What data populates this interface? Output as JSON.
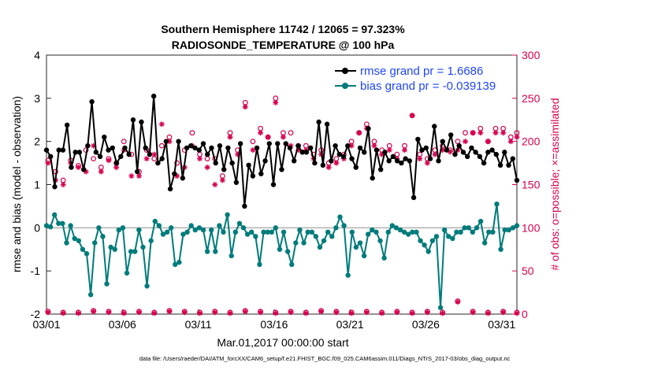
{
  "chart_data": {
    "type": "line",
    "title": "Southern Hemisphere 11742 / 12065 = 97.323%",
    "subtitle": "RADIOSONDE_TEMPERATURE @ 100 hPa",
    "xlabel": "Mar.01,2017 00:00:00 start",
    "ylabel": "rmse and bias (model - observation)",
    "ylabel_right": "# of obs: o=possible; ×=assimilated",
    "xlim": [
      0,
      31
    ],
    "ylim": [
      -2,
      4
    ],
    "ylim_right": [
      0,
      300
    ],
    "x_ticks": [
      0,
      5,
      10,
      15,
      20,
      25,
      30
    ],
    "x_tick_labels": [
      "03/01",
      "03/06",
      "03/11",
      "03/16",
      "03/21",
      "03/26",
      "03/31"
    ],
    "y_ticks": [
      "-2",
      "-1",
      "0",
      "1",
      "2",
      "3",
      "4"
    ],
    "y_ticks_right": [
      "0",
      "50",
      "100",
      "150",
      "200",
      "250",
      "300"
    ],
    "footnote": "data file: /Users/raeder/DAI/ATM_forcXX/CAM6_setup/f.e21.FHIST_BGC.f09_025.CAM6assim.011/Diags_NTrS_2017-03/obs_diag_output.nc",
    "colors": {
      "rmse": "#000000",
      "bias": "#007b7b",
      "obs": "#d6004f",
      "legend_text": "#1f45ff",
      "zero_line": "#b0b0b0"
    },
    "series": [
      {
        "name": "rmse grand pr = 1.6686",
        "values": [
          1.8,
          1.65,
          0.95,
          1.8,
          1.8,
          2.38,
          1.4,
          1.75,
          1.75,
          1.35,
          1.9,
          2.92,
          1.75,
          1.65,
          2.1,
          1.8,
          1.85,
          1.5,
          1.65,
          1.85,
          1.7,
          2.5,
          1.3,
          2.45,
          1.85,
          1.7,
          3.05,
          1.5,
          1.6,
          2.0,
          0.9,
          1.25,
          2.0,
          1.15,
          1.85,
          1.9,
          1.85,
          1.8,
          1.95,
          1.7,
          1.85,
          1.5,
          1.9,
          1.35,
          1.85,
          1.5,
          1.05,
          1.95,
          0.5,
          1.45,
          1.2,
          1.85,
          1.25,
          1.55,
          1.95,
          1.0,
          1.95,
          1.35,
          1.95,
          1.85,
          1.55,
          1.9,
          1.75,
          1.75,
          1.85,
          1.5,
          2.45,
          1.45,
          2.4,
          1.55,
          1.9,
          1.7,
          1.65,
          1.9,
          1.6,
          1.4,
          1.85,
          1.75,
          2.3,
          1.15,
          1.8,
          1.35,
          1.75,
          1.55,
          1.65,
          1.55,
          1.5,
          1.6,
          1.55,
          0.7,
          2.05,
          1.8,
          1.85,
          1.6,
          2.35,
          1.55,
          2.0,
          1.8,
          2.15,
          1.7,
          1.9,
          1.75,
          1.65,
          1.85,
          1.75,
          1.65,
          1.5,
          1.75,
          1.8,
          1.7,
          1.45,
          1.75,
          1.45,
          1.6,
          1.1
        ]
      },
      {
        "name": "bias grand pr = -0.039139",
        "values": [
          0.05,
          0.02,
          0.3,
          0.1,
          0.1,
          -0.35,
          0.05,
          -0.25,
          -0.3,
          -0.5,
          -0.6,
          -1.55,
          -0.35,
          0.0,
          -0.2,
          -1.3,
          -0.45,
          -0.5,
          -0.05,
          0.0,
          -1.05,
          -0.55,
          -0.55,
          -0.05,
          -0.45,
          -1.35,
          -0.3,
          0.15,
          0.05,
          -0.15,
          -0.1,
          0.0,
          -0.85,
          -0.8,
          -0.15,
          -0.1,
          0.05,
          -0.05,
          0.0,
          -0.05,
          -0.55,
          -0.05,
          -0.55,
          0.05,
          -0.1,
          0.3,
          -0.65,
          -0.1,
          0.1,
          0.0,
          -0.15,
          -0.1,
          -0.2,
          -0.85,
          -0.1,
          -0.1,
          -0.1,
          0.0,
          -0.5,
          -0.1,
          -0.55,
          -0.85,
          -0.35,
          -0.05,
          -0.35,
          -0.1,
          -0.1,
          -0.2,
          -0.45,
          -0.3,
          -0.1,
          -0.2,
          0.0,
          0.25,
          0.05,
          -1.1,
          -0.1,
          -0.45,
          -0.35,
          -0.65,
          -0.15,
          -0.05,
          -0.1,
          -0.3,
          -0.7,
          -0.1,
          0.05,
          0.0,
          -0.05,
          -0.1,
          -0.15,
          -0.1,
          -0.1,
          -0.3,
          -0.4,
          -0.55,
          -0.3,
          -0.2,
          -1.85,
          -0.05,
          -0.2,
          -0.25,
          -0.1,
          -0.1,
          0.0,
          0.0,
          -0.1,
          0.0,
          0.15,
          -0.35,
          -0.1,
          -0.1,
          0.55,
          -0.5,
          -0.05,
          -0.05,
          0.0,
          0.05
        ]
      }
    ],
    "obs_possible": [
      [
        0.1,
        178
      ],
      [
        0.6,
        165
      ],
      [
        1.1,
        155
      ],
      [
        1.6,
        178
      ],
      [
        2.1,
        172
      ],
      [
        2.6,
        190
      ],
      [
        3.1,
        180
      ],
      [
        3.6,
        170
      ],
      [
        4.1,
        180
      ],
      [
        4.6,
        175
      ],
      [
        5.1,
        200
      ],
      [
        5.6,
        185
      ],
      [
        6.1,
        165
      ],
      [
        6.6,
        190
      ],
      [
        7.1,
        180
      ],
      [
        7.6,
        195
      ],
      [
        8.1,
        205
      ],
      [
        8.6,
        175
      ],
      [
        9.1,
        190
      ],
      [
        9.6,
        210
      ],
      [
        10.1,
        185
      ],
      [
        10.6,
        180
      ],
      [
        11.1,
        180
      ],
      [
        11.6,
        160
      ],
      [
        12.1,
        210
      ],
      [
        12.6,
        190
      ],
      [
        13.1,
        245
      ],
      [
        13.6,
        200
      ],
      [
        14.1,
        215
      ],
      [
        14.6,
        205
      ],
      [
        15.1,
        250
      ],
      [
        15.6,
        210
      ],
      [
        16.1,
        210
      ],
      [
        16.6,
        195
      ],
      [
        17.1,
        195
      ],
      [
        17.6,
        185
      ],
      [
        18.1,
        190
      ],
      [
        18.6,
        175
      ],
      [
        19.1,
        180
      ],
      [
        19.6,
        185
      ],
      [
        20.1,
        200
      ],
      [
        20.6,
        210
      ],
      [
        21.1,
        220
      ],
      [
        21.6,
        200
      ],
      [
        22.1,
        190
      ],
      [
        22.6,
        195
      ],
      [
        23.1,
        185
      ],
      [
        23.6,
        195
      ],
      [
        24.1,
        230
      ],
      [
        24.6,
        185
      ],
      [
        25.1,
        180
      ],
      [
        25.6,
        190
      ],
      [
        26.1,
        195
      ],
      [
        26.6,
        190
      ],
      [
        27.1,
        200
      ],
      [
        27.6,
        210
      ],
      [
        28.1,
        210
      ],
      [
        28.6,
        215
      ],
      [
        29.1,
        200
      ],
      [
        29.6,
        215
      ],
      [
        30.1,
        215
      ],
      [
        30.6,
        205
      ],
      [
        31.0,
        210
      ]
    ],
    "obs_assimilated": [
      [
        0.1,
        175
      ],
      [
        0.6,
        155
      ],
      [
        1.1,
        150
      ],
      [
        1.6,
        175
      ],
      [
        2.1,
        170
      ],
      [
        2.6,
        165
      ],
      [
        3.1,
        195
      ],
      [
        3.6,
        165
      ],
      [
        4.1,
        178
      ],
      [
        4.6,
        170
      ],
      [
        5.1,
        190
      ],
      [
        5.6,
        160
      ],
      [
        6.1,
        160
      ],
      [
        6.6,
        180
      ],
      [
        7.1,
        185
      ],
      [
        7.6,
        220
      ],
      [
        8.1,
        200
      ],
      [
        8.6,
        160
      ],
      [
        9.1,
        170
      ],
      [
        9.6,
        195
      ],
      [
        10.1,
        180
      ],
      [
        10.6,
        170
      ],
      [
        11.1,
        150
      ],
      [
        11.6,
        155
      ],
      [
        12.1,
        205
      ],
      [
        12.6,
        185
      ],
      [
        13.1,
        240
      ],
      [
        13.6,
        190
      ],
      [
        14.1,
        210
      ],
      [
        14.6,
        205
      ],
      [
        15.1,
        245
      ],
      [
        15.6,
        205
      ],
      [
        16.1,
        195
      ],
      [
        16.6,
        190
      ],
      [
        17.1,
        190
      ],
      [
        17.6,
        180
      ],
      [
        18.1,
        185
      ],
      [
        18.6,
        170
      ],
      [
        19.1,
        175
      ],
      [
        19.6,
        180
      ],
      [
        20.1,
        195
      ],
      [
        20.6,
        210
      ],
      [
        21.1,
        215
      ],
      [
        21.6,
        195
      ],
      [
        22.1,
        185
      ],
      [
        22.6,
        190
      ],
      [
        23.1,
        180
      ],
      [
        23.6,
        190
      ],
      [
        24.1,
        230
      ],
      [
        24.6,
        180
      ],
      [
        25.1,
        175
      ],
      [
        25.6,
        185
      ],
      [
        26.1,
        190
      ],
      [
        26.6,
        188
      ],
      [
        27.1,
        190
      ],
      [
        27.6,
        200
      ],
      [
        28.1,
        210
      ],
      [
        28.6,
        210
      ],
      [
        29.1,
        200
      ],
      [
        29.6,
        210
      ],
      [
        30.1,
        210
      ],
      [
        30.6,
        200
      ],
      [
        31.0,
        205
      ]
    ],
    "obs_possible_low": [
      [
        0.1,
        3
      ],
      [
        1.1,
        2
      ],
      [
        2.1,
        2
      ],
      [
        3.1,
        4
      ],
      [
        4.1,
        3
      ],
      [
        5.1,
        2
      ],
      [
        6.1,
        3
      ],
      [
        7.1,
        2
      ],
      [
        8.1,
        4
      ],
      [
        9.1,
        3
      ],
      [
        10.1,
        2
      ],
      [
        11.1,
        3
      ],
      [
        12.1,
        2
      ],
      [
        13.1,
        4
      ],
      [
        14.1,
        3
      ],
      [
        15.1,
        2
      ],
      [
        16.1,
        3
      ],
      [
        17.1,
        2
      ],
      [
        18.1,
        4
      ],
      [
        19.1,
        3
      ],
      [
        20.1,
        2
      ],
      [
        21.1,
        3
      ],
      [
        22.1,
        2
      ],
      [
        23.1,
        3
      ],
      [
        24.1,
        2
      ],
      [
        25.1,
        3
      ],
      [
        26.1,
        2
      ],
      [
        27.1,
        15
      ],
      [
        28.1,
        3
      ],
      [
        29.1,
        2
      ],
      [
        30.1,
        3
      ],
      [
        31.0,
        2
      ]
    ]
  }
}
